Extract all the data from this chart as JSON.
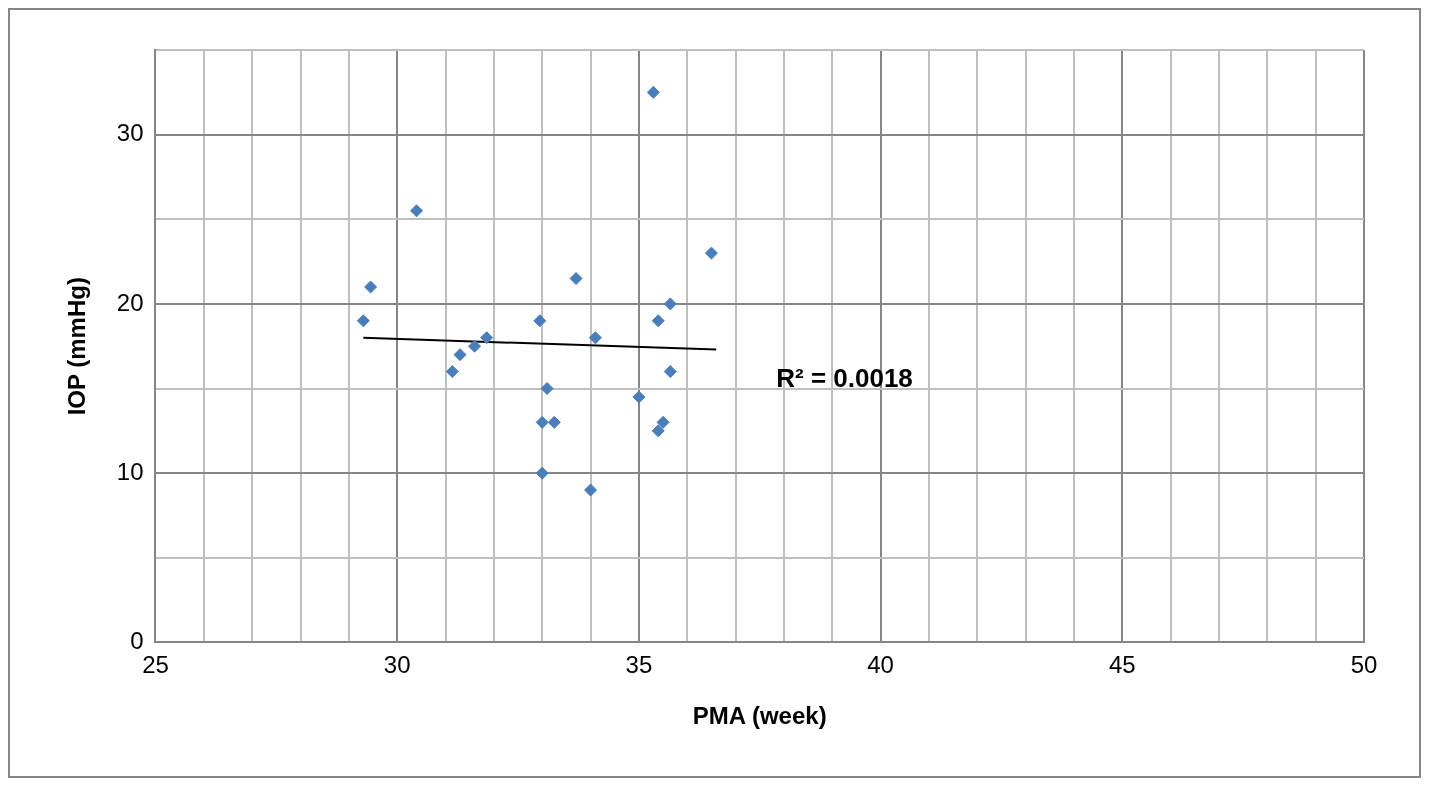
{
  "chart_data": {
    "type": "scatter",
    "xlabel": "PMA (week)",
    "ylabel": "IOP (mmHg)",
    "xlim": [
      25,
      50
    ],
    "xticks": [
      25,
      30,
      35,
      40,
      45,
      50
    ],
    "ylim": [
      0,
      35
    ],
    "yticks": [
      0,
      10,
      20,
      30
    ],
    "grid": true,
    "legend": false,
    "marker": "diamond",
    "series": [
      {
        "type": "scatter",
        "color": "#4a7ebb",
        "x": [
          29.3,
          29.45,
          30.4,
          31.14,
          31.3,
          31.6,
          31.85,
          32.95,
          33.0,
          33.0,
          33.1,
          33.25,
          33.7,
          34.0,
          34.1,
          35.0,
          35.3,
          35.4,
          35.4,
          35.5,
          35.65,
          35.65,
          36.5
        ],
        "values": [
          19,
          21,
          25.5,
          16,
          17,
          17.5,
          18,
          19,
          13,
          10,
          15,
          13,
          21.5,
          9,
          18,
          14.5,
          32.5,
          19,
          12.5,
          13,
          20,
          16,
          23
        ]
      },
      {
        "type": "line",
        "color": "#000000",
        "marker": "none",
        "x": [
          29.3,
          36.6
        ],
        "values": [
          18.0,
          17.3
        ]
      }
    ],
    "annotations": [
      "R² = 0.0018"
    ]
  }
}
